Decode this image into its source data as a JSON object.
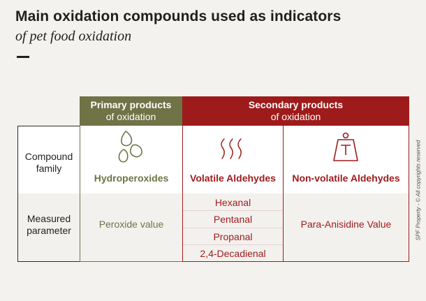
{
  "header": {
    "title": "Main oxidation compounds used as indicators",
    "subtitle": "of pet food oxidation"
  },
  "side_note": "SPF Property - © All copyrights reserved",
  "columns": {
    "primary": {
      "line1": "Primary products",
      "line2": "of oxidation"
    },
    "secondary": {
      "line1": "Secondary products",
      "line2": "of oxidation"
    }
  },
  "rows": {
    "compound_family": {
      "line1": "Compound",
      "line2": "family"
    },
    "measured_parameter": {
      "line1": "Measured",
      "line2": "parameter"
    }
  },
  "families": {
    "primary": {
      "name": "Hydroperoxides",
      "icon": "droplets-icon"
    },
    "volatile": {
      "name": "Volatile Aldehydes",
      "icon": "vapor-icon"
    },
    "nonvolatile": {
      "name": "Non-volatile Aldehydes",
      "icon": "weight-icon"
    }
  },
  "parameters": {
    "primary": "Peroxide value",
    "volatile": [
      "Hexanal",
      "Pentanal",
      "Propanal",
      "2,4-Decadienal"
    ],
    "nonvolatile": "Para-Anisidine Value"
  },
  "colors": {
    "primary": "#6f7346",
    "secondary": "#9e1b1b",
    "background": "#f4f2ee"
  }
}
